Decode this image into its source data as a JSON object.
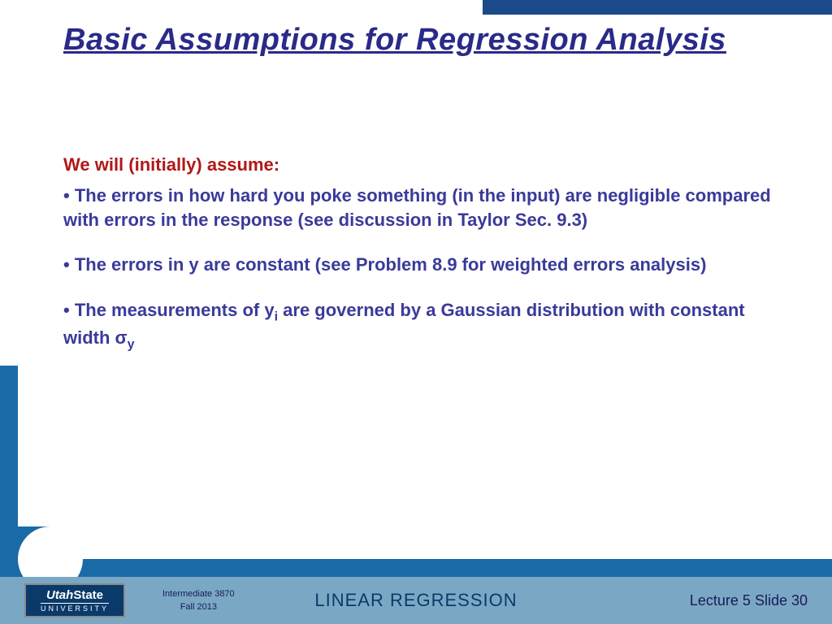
{
  "colors": {
    "title": "#2a2a8a",
    "lead": "#b01818",
    "body": "#3a3a9a",
    "topbar": "#1b4a8a",
    "frame": "#1b6aa8",
    "footer_bg": "#7aa8c4",
    "logo_bg": "#0a3a6a",
    "footer_text": "#1a1a5a"
  },
  "header": {
    "title": "Basic Assumptions for Regression Analysis"
  },
  "content": {
    "lead": "We will (initially) assume:",
    "bullets": [
      {
        "prefix": "•  The errors in how hard you poke something (in the input) are negligible compared with errors in the response (see discussion in Taylor Sec. 9.3)"
      },
      {
        "prefix": "•  The errors in y are constant (see Problem 8.9 for weighted errors analysis)"
      },
      {
        "pre": "•  The measurements of y",
        "sub1": "i",
        "mid": " are governed by a Gaussian distribution with constant width σ",
        "sub2": "y"
      }
    ]
  },
  "footer": {
    "logo": {
      "line1a": "Utah",
      "line1b": "State",
      "line2": "UNIVERSITY"
    },
    "course": {
      "line1": "Intermediate  3870",
      "line2": "Fall 2013"
    },
    "center": "LINEAR REGRESSION",
    "right": "Lecture  5   Slide  30"
  }
}
